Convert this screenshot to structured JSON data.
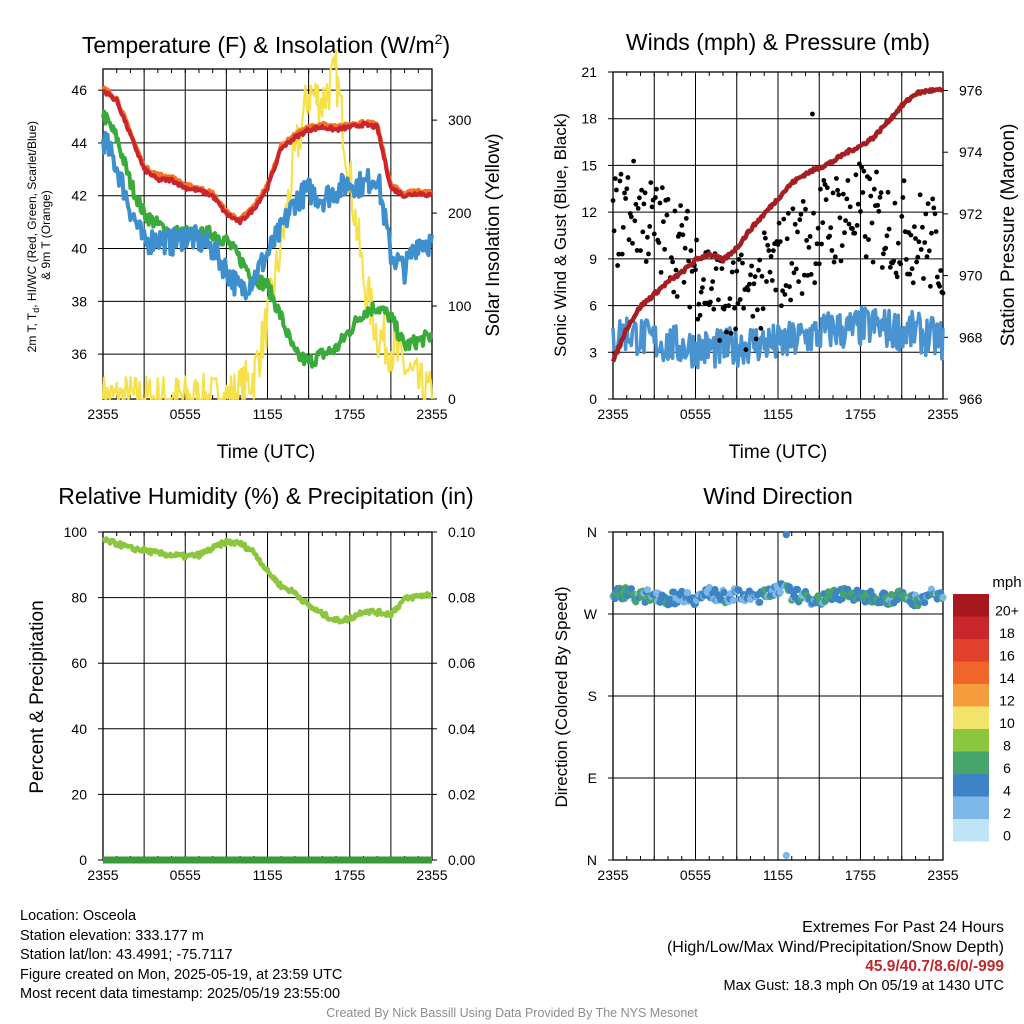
{
  "chart_data": [
    {
      "type": "line",
      "title": "Temperature (F) & Insolation (W/m²)",
      "xlabel": "Time (UTC)",
      "ylabel": "2m T, Td, HI/WC (Red, Green, Scarlet/Blue) & 9m T (Orange)",
      "ylabel_right": "Solar Insolation (Yellow)",
      "x_ticks": [
        "2355",
        "0555",
        "1155",
        "1755",
        "2355"
      ],
      "y_ticks": [
        36,
        38,
        40,
        42,
        44,
        46
      ],
      "y_right_ticks": [
        0,
        100,
        200,
        300
      ],
      "ylim": [
        34.3,
        46.8
      ],
      "ylim_right": [
        0,
        355
      ],
      "hours": [
        0,
        1,
        2,
        3,
        4,
        5,
        6,
        7,
        8,
        9,
        10,
        11,
        12,
        13,
        14,
        15,
        16,
        17,
        18,
        19,
        20,
        21,
        22,
        23,
        24
      ],
      "series": [
        {
          "role": "t2m",
          "color": "#c8262a",
          "values": [
            46.0,
            45.6,
            44.3,
            43.0,
            42.6,
            42.6,
            42.3,
            42.2,
            42.0,
            41.3,
            41.0,
            41.5,
            42.3,
            43.8,
            44.2,
            44.5,
            44.6,
            44.5,
            44.6,
            44.7,
            44.6,
            42.3,
            42.0,
            42.1,
            42.0
          ]
        },
        {
          "role": "t9m",
          "color": "#f4732c",
          "values": [
            46.1,
            45.7,
            44.4,
            43.1,
            42.8,
            42.7,
            42.4,
            42.3,
            42.1,
            41.4,
            41.1,
            41.6,
            42.4,
            43.9,
            44.3,
            44.6,
            44.7,
            44.6,
            44.7,
            44.8,
            44.7,
            42.4,
            42.1,
            42.2,
            42.1
          ]
        },
        {
          "role": "dewpoint",
          "color": "#3aab3a",
          "values": [
            45.1,
            44.2,
            42.5,
            41.3,
            40.9,
            40.6,
            40.6,
            40.5,
            40.6,
            40.3,
            39.6,
            38.9,
            38.6,
            37.4,
            36.0,
            35.7,
            36.0,
            36.2,
            36.9,
            37.6,
            37.8,
            37.4,
            36.3,
            36.5,
            36.7
          ]
        },
        {
          "role": "heatindex_windchill",
          "color": "#3d8fce",
          "values": [
            44.2,
            43.1,
            41.5,
            40.2,
            40.4,
            40.2,
            40.5,
            40.3,
            40.0,
            39.2,
            38.4,
            38.9,
            39.8,
            40.7,
            41.8,
            42.2,
            41.9,
            42.2,
            42.5,
            42.4,
            42.8,
            39.8,
            39.2,
            40.3,
            40.2
          ]
        },
        {
          "role": "insolation",
          "color": "#f7e14a",
          "values": [
            0,
            0,
            0,
            0,
            0,
            0,
            0,
            0,
            0,
            1,
            8,
            25,
            85,
            165,
            260,
            330,
            320,
            350,
            240,
            130,
            70,
            55,
            35,
            15,
            2
          ]
        }
      ]
    },
    {
      "type": "scatter",
      "title": "Winds (mph) & Pressure (mb)",
      "xlabel": "Time (UTC)",
      "ylabel": "Sonic Wind & Gust (Blue, Black)",
      "ylabel_right": "Station Pressure (Maroon)",
      "x_ticks": [
        "2355",
        "0555",
        "1155",
        "1755",
        "2355"
      ],
      "y_ticks": [
        0,
        3,
        6,
        9,
        12,
        15,
        18,
        21
      ],
      "y_right_ticks": [
        966,
        968,
        970,
        972,
        974,
        976
      ],
      "ylim": [
        0,
        21
      ],
      "ylim_right": [
        966,
        976.6
      ],
      "hours": [
        0,
        1,
        2,
        3,
        4,
        5,
        6,
        7,
        8,
        9,
        10,
        11,
        12,
        13,
        14,
        15,
        16,
        17,
        18,
        19,
        20,
        21,
        22,
        23,
        24
      ],
      "series": [
        {
          "role": "pressure",
          "color": "#a51e22",
          "values": [
            967.2,
            968.3,
            969.0,
            969.4,
            969.8,
            970.1,
            970.5,
            970.7,
            970.5,
            970.9,
            971.5,
            972.0,
            972.5,
            973.0,
            973.3,
            973.5,
            973.7,
            974.0,
            974.2,
            974.5,
            975.0,
            975.5,
            975.9,
            976.0,
            976.0
          ]
        },
        {
          "role": "wind",
          "color": "#4a93d1",
          "values": [
            4.0,
            4.3,
            4.0,
            3.7,
            3.5,
            3.4,
            3.3,
            3.2,
            3.2,
            3.4,
            3.6,
            3.6,
            3.5,
            3.7,
            4.0,
            4.2,
            4.5,
            4.4,
            4.6,
            4.7,
            4.5,
            4.4,
            4.3,
            4.0,
            3.8
          ]
        },
        {
          "role": "gust",
          "color": "#000000",
          "values": [
            11,
            12.5,
            12,
            11,
            10.5,
            9.5,
            8.5,
            7.5,
            6.5,
            6,
            6.5,
            7.5,
            8.5,
            9.5,
            10,
            11,
            11.5,
            12,
            12,
            11.5,
            11,
            11,
            10.5,
            10,
            9.5
          ]
        }
      ],
      "max_gust": 18.3
    },
    {
      "type": "line",
      "title": "Relative Humidity (%) & Precipitation (in)",
      "xlabel": "",
      "ylabel": "Percent & Precipitation",
      "x_ticks": [
        "2355",
        "0555",
        "1155",
        "1755",
        "2355"
      ],
      "y_ticks": [
        0,
        20,
        40,
        60,
        80,
        100
      ],
      "y_right_ticks": [
        "0.00",
        "0.02",
        "0.04",
        "0.06",
        "0.08",
        "0.10"
      ],
      "ylim": [
        0,
        100
      ],
      "ylim_right": [
        0,
        0.1
      ],
      "hours": [
        0,
        1,
        2,
        3,
        4,
        5,
        6,
        7,
        8,
        9,
        10,
        11,
        12,
        13,
        14,
        15,
        16,
        17,
        18,
        19,
        20,
        21,
        22,
        23,
        24
      ],
      "series": [
        {
          "role": "rh",
          "color": "#8cc63f",
          "values": [
            97.5,
            96.5,
            95.0,
            94.5,
            93.5,
            93.0,
            92.5,
            93.0,
            95.0,
            97.0,
            96.5,
            94.0,
            88.0,
            83.5,
            81.5,
            77.5,
            75.0,
            73.0,
            73.5,
            76.0,
            75.5,
            75.0,
            79.5,
            80.5,
            81.0
          ]
        },
        {
          "role": "precip",
          "color": "#3a9a3a",
          "values": [
            0,
            0,
            0,
            0,
            0,
            0,
            0,
            0,
            0,
            0,
            0,
            0,
            0,
            0,
            0,
            0,
            0,
            0,
            0,
            0,
            0,
            0,
            0,
            0,
            0
          ]
        }
      ]
    },
    {
      "type": "scatter",
      "title": "Wind Direction",
      "ylabel": "Direction (Colored By Speed)",
      "x_ticks": [
        "2355",
        "0555",
        "1155",
        "1755",
        "2355"
      ],
      "y_ticks": [
        "N",
        "W",
        "S",
        "E",
        "N"
      ],
      "ylim_deg": [
        0,
        360
      ],
      "hours": [
        0,
        1,
        2,
        3,
        4,
        5,
        6,
        7,
        8,
        9,
        10,
        11,
        12,
        13,
        14,
        15,
        16,
        17,
        18,
        19,
        20,
        21,
        22,
        23,
        24
      ],
      "directions": [
        290,
        295,
        288,
        292,
        286,
        290,
        287,
        293,
        289,
        291,
        288,
        290,
        300,
        292,
        288,
        286,
        290,
        294,
        288,
        290,
        287,
        289,
        285,
        291,
        290
      ],
      "speeds": [
        4,
        4.5,
        4,
        3.5,
        3.5,
        3,
        3,
        3,
        3,
        3.5,
        3.5,
        3.5,
        3.5,
        4,
        4,
        4.5,
        4.5,
        4.5,
        5,
        5,
        4.5,
        4.5,
        4,
        4,
        4
      ],
      "outliers": [
        {
          "hour": 12.6,
          "direction": 357,
          "speed": 3
        },
        {
          "hour": 12.6,
          "direction": 5,
          "speed": 2
        }
      ],
      "legend": {
        "title": "mph",
        "labels": [
          "20+",
          "18",
          "16",
          "14",
          "12",
          "10",
          "8",
          "6",
          "4",
          "2",
          "0"
        ],
        "colors": [
          "#a5191e",
          "#c8262a",
          "#e0402c",
          "#f06529",
          "#f59c3c",
          "#f2e36a",
          "#8cc63f",
          "#46a56a",
          "#3d84c6",
          "#7db8e8",
          "#bfe3f7"
        ]
      }
    }
  ],
  "footer": {
    "location": "Location: Osceola",
    "elevation": "Station elevation: 333.177 m",
    "latlon": "Station lat/lon: 43.4991; -75.7117",
    "created": "Figure created on Mon, 2025-05-19, at 23:59 UTC",
    "latest": "Most recent data timestamp: 2025/05/19 23:55:00",
    "extremes_title": "Extremes For Past 24 Hours",
    "extremes_sub": "(High/Low/Max Wind/Precipitation/Snow Depth)",
    "extremes_values": "45.9/40.7/8.6/0/-999",
    "max_gust": "Max Gust: 18.3 mph On 05/19 at 1430 UTC",
    "credit": "Created By Nick Bassill Using Data Provided By The NYS Mesonet"
  }
}
